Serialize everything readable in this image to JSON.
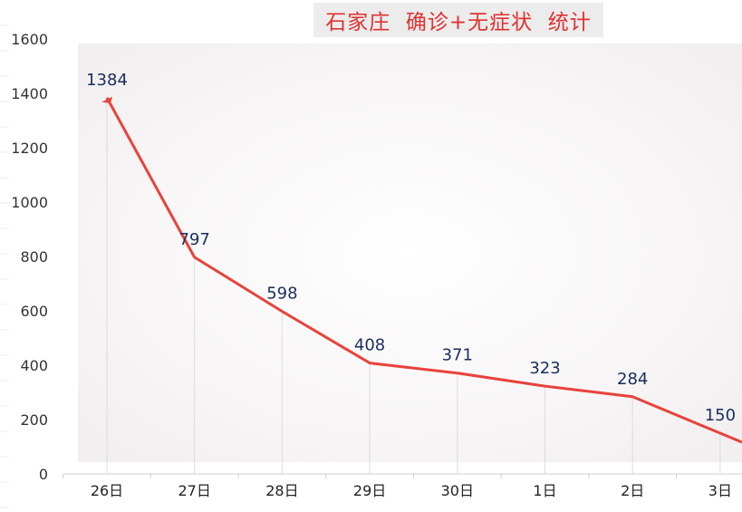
{
  "chart_data": {
    "type": "line",
    "title": "石家庄  确诊+无症状  统计",
    "categories": [
      "26日",
      "27日",
      "28日",
      "29日",
      "30日",
      "1日",
      "2日",
      "3日"
    ],
    "series": [
      {
        "values": [
          1384,
          797,
          598,
          408,
          371,
          323,
          284,
          150
        ]
      }
    ],
    "ylim": [
      0,
      1600
    ],
    "yticks": [
      0,
      200,
      400,
      600,
      800,
      1000,
      1200,
      1400,
      1600
    ],
    "grid": true,
    "data_labels": true,
    "colors": {
      "line": "#e8423c",
      "label": "#1a2e5c",
      "title": "#e03131"
    }
  }
}
